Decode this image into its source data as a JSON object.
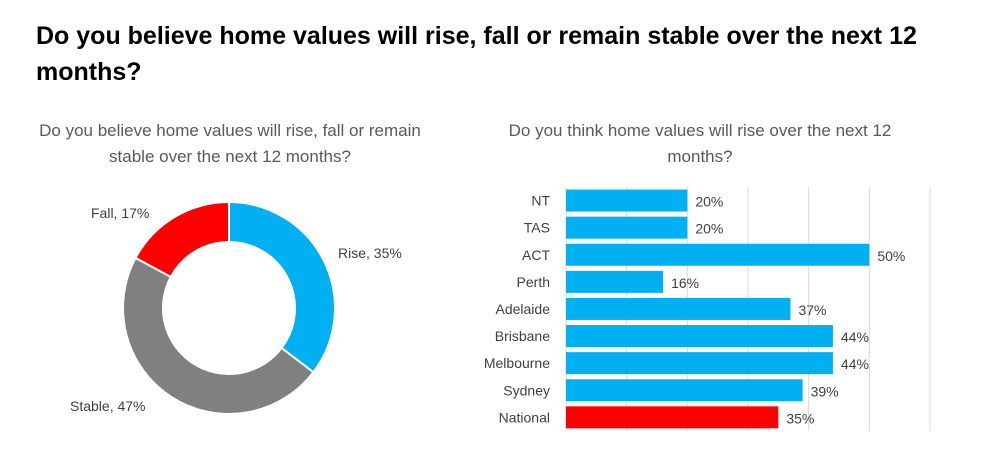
{
  "header": {
    "title": "Do you believe home values will rise, fall or remain stable over the next 12 months?"
  },
  "colors": {
    "blue": "#00B0F0",
    "red": "#FF0000",
    "gray": "#808080",
    "text": "#404040",
    "grid": "#D9D9D9"
  },
  "chart_data": [
    {
      "type": "pie",
      "title": "Do you believe home values will rise, fall or remain stable over the next 12 months?",
      "donut": true,
      "slices": [
        {
          "label": "Rise",
          "value": 35,
          "display": "Rise, 35%",
          "color": "#00B0F0"
        },
        {
          "label": "Stable",
          "value": 47,
          "display": "Stable, 47%",
          "color": "#808080"
        },
        {
          "label": "Fall",
          "value": 17,
          "display": "Fall, 17%",
          "color": "#FF0000"
        }
      ]
    },
    {
      "type": "bar",
      "orientation": "horizontal",
      "title": "Do you think home values will rise over the next 12 months?",
      "categories": [
        "NT",
        "TAS",
        "ACT",
        "Perth",
        "Adelaide",
        "Brisbane",
        "Melbourne",
        "Sydney",
        "National"
      ],
      "values": [
        20,
        20,
        50,
        16,
        37,
        44,
        44,
        39,
        35
      ],
      "value_labels": [
        "20%",
        "20%",
        "50%",
        "16%",
        "37%",
        "44%",
        "44%",
        "39%",
        "35%"
      ],
      "colors": [
        "#00B0F0",
        "#00B0F0",
        "#00B0F0",
        "#00B0F0",
        "#00B0F0",
        "#00B0F0",
        "#00B0F0",
        "#00B0F0",
        "#FF0000"
      ],
      "xlim": [
        0,
        60
      ],
      "grid": true
    }
  ]
}
